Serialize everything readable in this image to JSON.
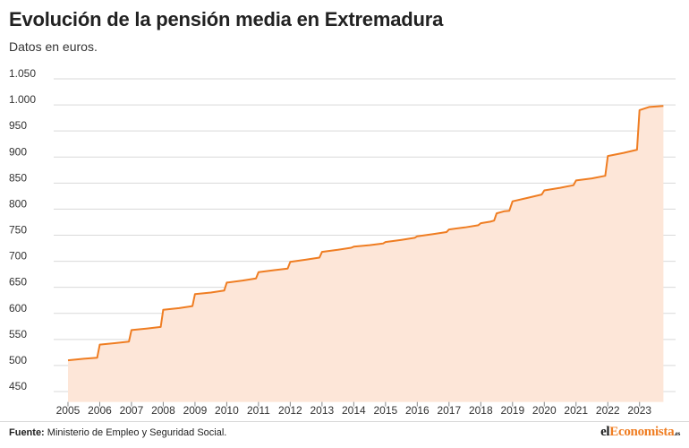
{
  "title": "Evolución de la pensión media en Extremadura",
  "subtitle": "Datos en euros.",
  "source": {
    "label": "Fuente:",
    "text": "Ministerio de Empleo y Seguridad Social."
  },
  "logo": {
    "part1": "el",
    "part2": "Economista",
    "tld": ".es"
  },
  "colors": {
    "line": "#ef7d22",
    "area": "#fde6d8",
    "grid": "#d9d9d9"
  },
  "chart_data": {
    "type": "area",
    "title": "Evolución de la pensión media en Extremadura",
    "subtitle": "Datos en euros.",
    "xlabel": "",
    "ylabel": "",
    "ylim": [
      430,
      1050
    ],
    "yticks": [
      450,
      500,
      550,
      600,
      650,
      700,
      750,
      800,
      850,
      900,
      950,
      1000,
      1050
    ],
    "ytick_labels": [
      "450",
      "500",
      "550",
      "600",
      "650",
      "700",
      "750",
      "800",
      "850",
      "900",
      "950",
      "1.000",
      "1.050"
    ],
    "xticks": [
      2005,
      2006,
      2007,
      2008,
      2009,
      2010,
      2011,
      2012,
      2013,
      2014,
      2015,
      2016,
      2017,
      2018,
      2019,
      2020,
      2021,
      2022,
      2023
    ],
    "xlim": [
      2004.55,
      2024.05
    ],
    "grid": "horizontal",
    "legend": "none",
    "series": [
      {
        "points": [
          [
            2005.0,
            510
          ],
          [
            2005.5,
            513
          ],
          [
            2005.92,
            515
          ],
          [
            2006.0,
            540
          ],
          [
            2006.5,
            543
          ],
          [
            2006.92,
            546
          ],
          [
            2007.0,
            568
          ],
          [
            2007.5,
            571
          ],
          [
            2007.92,
            574
          ],
          [
            2008.0,
            607
          ],
          [
            2008.5,
            610
          ],
          [
            2008.92,
            614
          ],
          [
            2009.0,
            637
          ],
          [
            2009.5,
            640
          ],
          [
            2009.92,
            644
          ],
          [
            2010.0,
            659
          ],
          [
            2010.5,
            663
          ],
          [
            2010.92,
            667
          ],
          [
            2011.0,
            679
          ],
          [
            2011.5,
            683
          ],
          [
            2011.92,
            686
          ],
          [
            2012.0,
            699
          ],
          [
            2012.5,
            703
          ],
          [
            2012.92,
            707
          ],
          [
            2013.0,
            718
          ],
          [
            2013.5,
            722
          ],
          [
            2013.92,
            726
          ],
          [
            2014.0,
            728
          ],
          [
            2014.5,
            731
          ],
          [
            2014.92,
            734
          ],
          [
            2015.0,
            737
          ],
          [
            2015.5,
            741
          ],
          [
            2015.92,
            745
          ],
          [
            2016.0,
            748
          ],
          [
            2016.5,
            752
          ],
          [
            2016.92,
            756
          ],
          [
            2017.0,
            761
          ],
          [
            2017.5,
            765
          ],
          [
            2017.92,
            769
          ],
          [
            2018.0,
            773
          ],
          [
            2018.3,
            776
          ],
          [
            2018.42,
            778
          ],
          [
            2018.5,
            792
          ],
          [
            2018.75,
            796
          ],
          [
            2018.9,
            797
          ],
          [
            2019.0,
            815
          ],
          [
            2019.5,
            822
          ],
          [
            2019.92,
            828
          ],
          [
            2020.0,
            836
          ],
          [
            2020.5,
            841
          ],
          [
            2020.92,
            846
          ],
          [
            2021.0,
            855
          ],
          [
            2021.5,
            859
          ],
          [
            2021.92,
            864
          ],
          [
            2022.0,
            902
          ],
          [
            2022.5,
            908
          ],
          [
            2022.92,
            914
          ],
          [
            2023.0,
            990
          ],
          [
            2023.3,
            996
          ],
          [
            2023.75,
            998
          ]
        ]
      }
    ]
  }
}
